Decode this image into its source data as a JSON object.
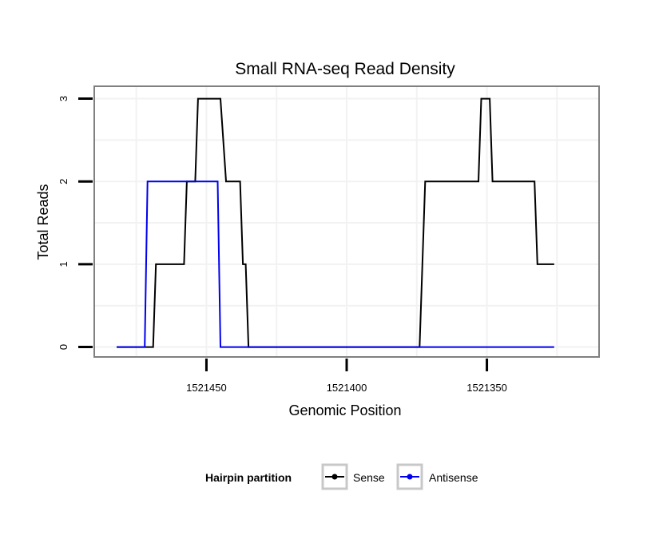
{
  "chart_data": {
    "type": "line",
    "title": "Small RNA-seq Read Density",
    "xlabel": "Genomic Position",
    "ylabel": "Total Reads",
    "x_reversed": true,
    "xlim": [
      1521490,
      1521310
    ],
    "ylim": [
      -0.12,
      3.15
    ],
    "x_ticks": [
      1521450,
      1521400,
      1521350
    ],
    "x_tick_labels": [
      "1521450",
      "1521400",
      "1521350"
    ],
    "y_ticks": [
      0,
      1,
      2,
      3
    ],
    "y_tick_labels": [
      "0",
      "1",
      "2",
      "3"
    ],
    "legend": {
      "title": "Hairpin partition",
      "position": "bottom",
      "entries": [
        "Sense",
        "Antisense"
      ]
    },
    "series": [
      {
        "name": "Sense",
        "color": "#000000",
        "x": [
          1521482,
          1521469,
          1521468,
          1521458,
          1521457,
          1521454,
          1521453,
          1521445,
          1521443,
          1521438,
          1521437,
          1521436,
          1521435,
          1521374,
          1521372,
          1521353,
          1521352,
          1521349,
          1521348,
          1521333,
          1521332,
          1521326
        ],
        "y": [
          0,
          0,
          1,
          1,
          2,
          2,
          3,
          3,
          2,
          2,
          1,
          1,
          0,
          0,
          2,
          2,
          3,
          3,
          2,
          2,
          1,
          1
        ]
      },
      {
        "name": "Antisense",
        "color": "#0000ee",
        "x": [
          1521482,
          1521472,
          1521471,
          1521446,
          1521445,
          1521326
        ],
        "y": [
          0,
          0,
          2,
          2,
          0,
          0
        ]
      }
    ]
  }
}
